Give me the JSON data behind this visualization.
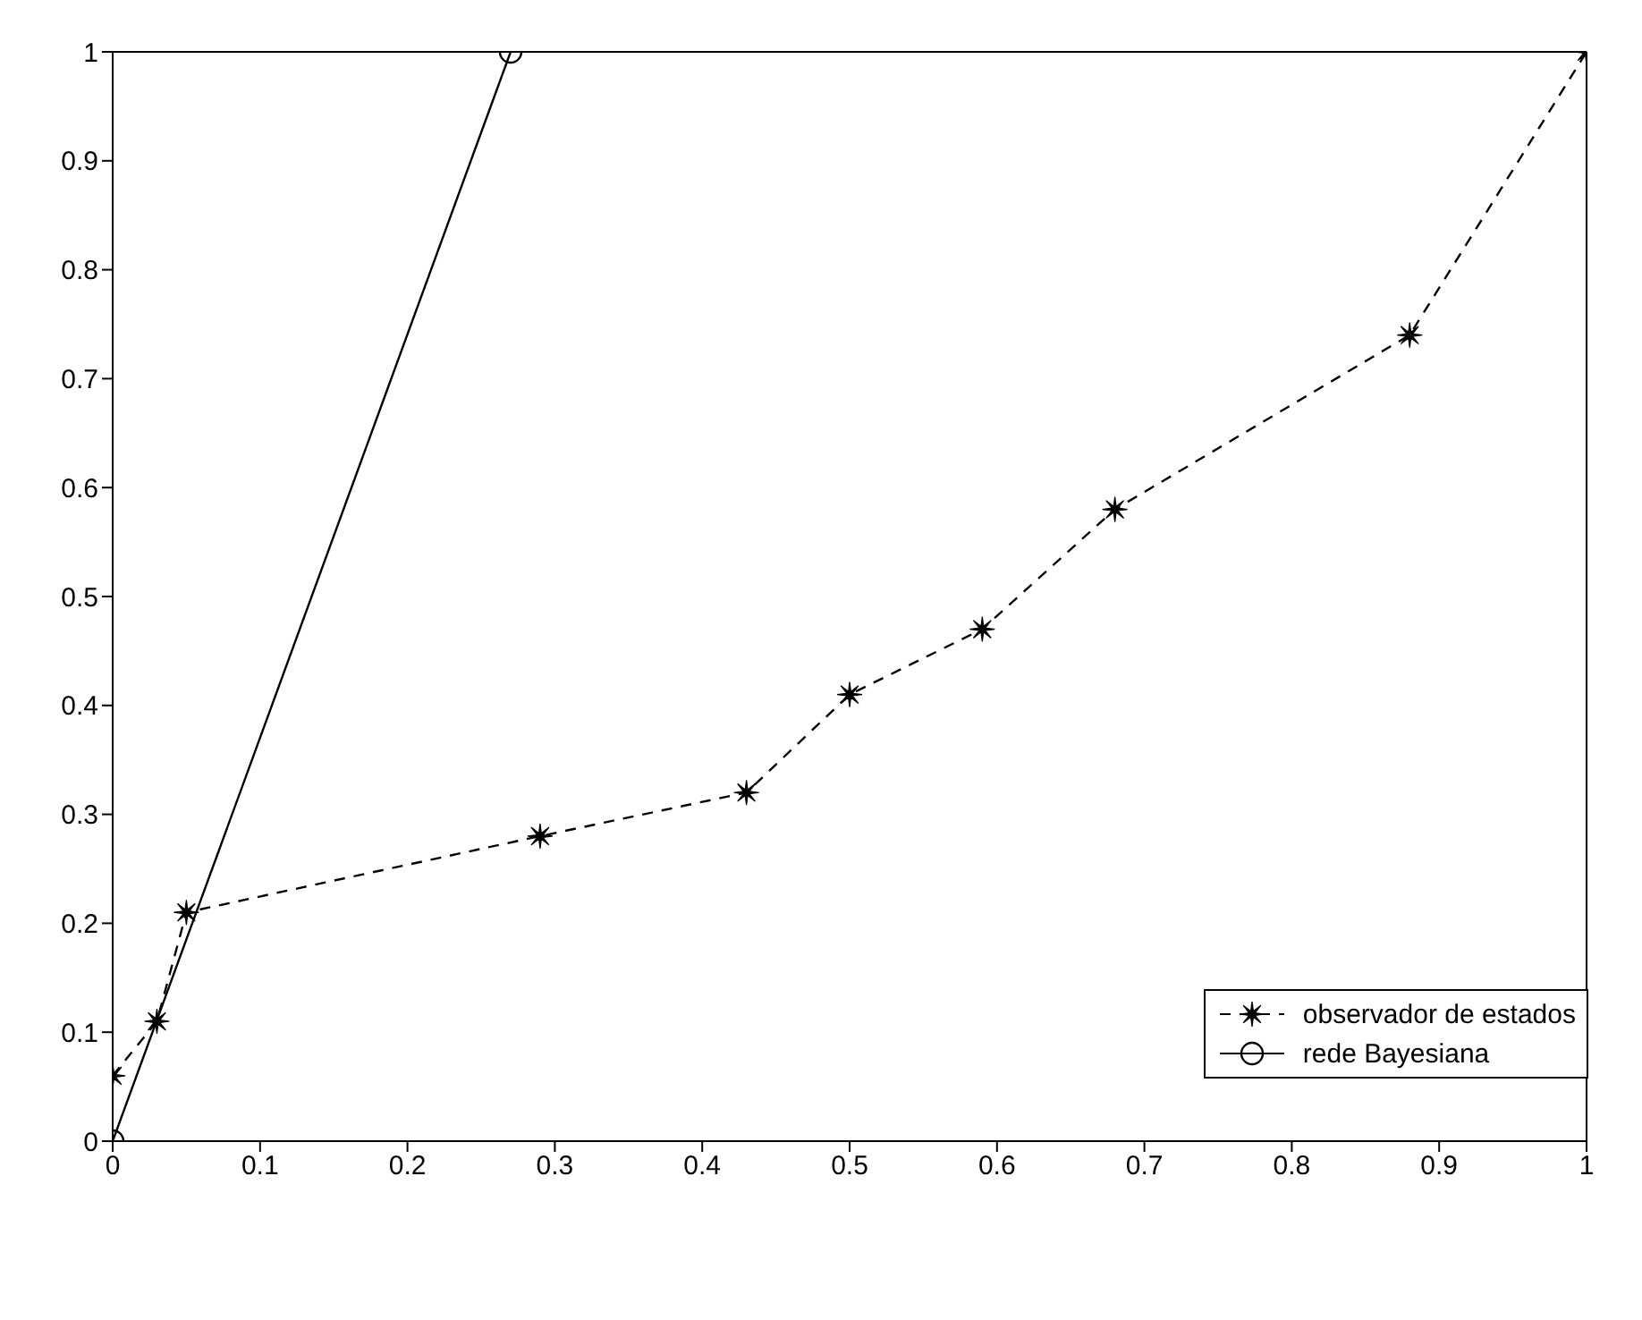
{
  "chart_data": {
    "type": "line",
    "series": [
      {
        "name": "observador de estados",
        "color": "#000000",
        "marker": "star",
        "line_style": "dashed",
        "x": [
          0,
          0.03,
          0.05,
          0.29,
          0.43,
          0.5,
          0.59,
          0.68,
          0.88,
          1
        ],
        "values": [
          0.06,
          0.11,
          0.21,
          0.28,
          0.32,
          0.41,
          0.47,
          0.58,
          0.74,
          1
        ]
      },
      {
        "name": "rede Bayesiana",
        "color": "#000000",
        "marker": "circle",
        "line_style": "solid",
        "x": [
          0,
          0.27
        ],
        "values": [
          0,
          1
        ]
      }
    ],
    "xlim": [
      0,
      1
    ],
    "xticks": [
      0,
      0.1,
      0.2,
      0.3,
      0.4,
      0.5,
      0.6,
      0.7,
      0.8,
      0.9,
      1
    ],
    "ylim": [
      0,
      1
    ],
    "yticks": [
      0,
      0.1,
      0.2,
      0.3,
      0.4,
      0.5,
      0.6,
      0.7,
      0.8,
      0.9,
      1
    ],
    "legend": "bottom right"
  }
}
